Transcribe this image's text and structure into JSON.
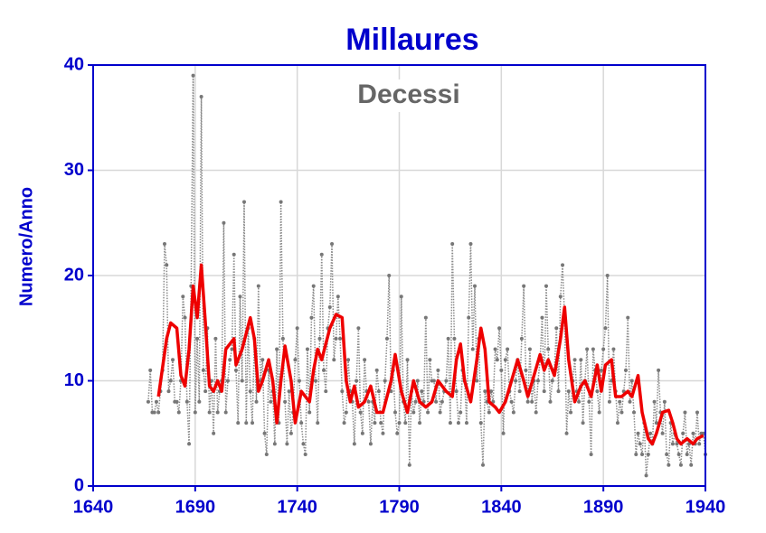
{
  "chart_data": {
    "type": "line",
    "title": "Millaures",
    "annotation": "Decessi",
    "y_label": "Numero/Anno",
    "xlim": [
      1640,
      1940
    ],
    "ylim": [
      0,
      40
    ],
    "xticks": [
      1640,
      1690,
      1740,
      1790,
      1840,
      1890,
      1940
    ],
    "yticks": [
      0,
      10,
      20,
      30,
      40
    ],
    "grid": true,
    "series": [
      {
        "color": "#8a8a8a",
        "style": "dotted",
        "markers": true,
        "x": [
          1667,
          1668,
          1669,
          1670,
          1671,
          1672,
          1673,
          1674,
          1675,
          1676,
          1677,
          1678,
          1679,
          1680,
          1681,
          1682,
          1683,
          1684,
          1685,
          1686,
          1687,
          1688,
          1689,
          1690,
          1691,
          1692,
          1693,
          1694,
          1695,
          1696,
          1697,
          1698,
          1699,
          1700,
          1701,
          1702,
          1703,
          1704,
          1705,
          1706,
          1707,
          1708,
          1709,
          1710,
          1711,
          1712,
          1713,
          1714,
          1715,
          1716,
          1717,
          1718,
          1719,
          1720,
          1721,
          1722,
          1723,
          1724,
          1725,
          1726,
          1727,
          1728,
          1729,
          1730,
          1731,
          1732,
          1733,
          1734,
          1735,
          1736,
          1737,
          1738,
          1739,
          1740,
          1741,
          1742,
          1743,
          1744,
          1745,
          1746,
          1747,
          1748,
          1749,
          1750,
          1751,
          1752,
          1753,
          1754,
          1755,
          1756,
          1757,
          1758,
          1759,
          1760,
          1761,
          1762,
          1763,
          1764,
          1765,
          1766,
          1767,
          1768,
          1769,
          1770,
          1771,
          1772,
          1773,
          1774,
          1775,
          1776,
          1777,
          1778,
          1779,
          1780,
          1781,
          1782,
          1783,
          1784,
          1785,
          1786,
          1787,
          1788,
          1789,
          1790,
          1791,
          1792,
          1793,
          1794,
          1795,
          1796,
          1797,
          1798,
          1799,
          1800,
          1801,
          1802,
          1803,
          1804,
          1805,
          1806,
          1807,
          1808,
          1809,
          1810,
          1811,
          1812,
          1813,
          1814,
          1815,
          1816,
          1817,
          1818,
          1819,
          1820,
          1821,
          1822,
          1823,
          1824,
          1825,
          1826,
          1827,
          1828,
          1829,
          1830,
          1831,
          1832,
          1833,
          1834,
          1835,
          1836,
          1837,
          1838,
          1839,
          1840,
          1841,
          1842,
          1843,
          1844,
          1845,
          1846,
          1847,
          1848,
          1849,
          1850,
          1851,
          1852,
          1853,
          1854,
          1855,
          1856,
          1857,
          1858,
          1859,
          1860,
          1861,
          1862,
          1863,
          1864,
          1865,
          1866,
          1867,
          1868,
          1869,
          1870,
          1871,
          1872,
          1873,
          1874,
          1875,
          1876,
          1877,
          1878,
          1879,
          1880,
          1881,
          1882,
          1883,
          1884,
          1885,
          1886,
          1887,
          1888,
          1889,
          1890,
          1891,
          1892,
          1893,
          1894,
          1895,
          1896,
          1897,
          1898,
          1899,
          1900,
          1901,
          1902,
          1903,
          1904,
          1905,
          1906,
          1907,
          1908,
          1909,
          1910,
          1911,
          1912,
          1913,
          1914,
          1915,
          1916,
          1917,
          1918,
          1919,
          1920,
          1921,
          1922,
          1923,
          1924,
          1925,
          1926,
          1927,
          1928,
          1929,
          1930,
          1931,
          1932,
          1933,
          1934,
          1935,
          1936,
          1937,
          1938,
          1939,
          1940
        ],
        "values": [
          8,
          11,
          7,
          7,
          8,
          7,
          9,
          11,
          23,
          21,
          9,
          10,
          12,
          8,
          8,
          7,
          10,
          18,
          16,
          8,
          4,
          19,
          39,
          7,
          14,
          8,
          37,
          11,
          9,
          15,
          7,
          10,
          5,
          14,
          7,
          9,
          10,
          25,
          7,
          10,
          12,
          13,
          22,
          11,
          6,
          18,
          10,
          27,
          6,
          15,
          9,
          6,
          14,
          8,
          19,
          10,
          12,
          5,
          3,
          11,
          8,
          9,
          4,
          13,
          6,
          27,
          14,
          8,
          4,
          9,
          5,
          7,
          12,
          15,
          10,
          6,
          4,
          3,
          13,
          7,
          16,
          19,
          10,
          6,
          14,
          22,
          11,
          9,
          15,
          17,
          23,
          12,
          14,
          18,
          14,
          9,
          6,
          7,
          12,
          9,
          8,
          4,
          10,
          15,
          7,
          5,
          12,
          9,
          8,
          4,
          8,
          6,
          11,
          9,
          6,
          5,
          10,
          14,
          20,
          9,
          11,
          7,
          5,
          6,
          18,
          8,
          6,
          12,
          2,
          9,
          7,
          8,
          10,
          6,
          9,
          8,
          16,
          7,
          12,
          10,
          10,
          8,
          11,
          7,
          8,
          9,
          10,
          14,
          6,
          23,
          14,
          9,
          6,
          7,
          11,
          10,
          6,
          16,
          23,
          13,
          19,
          10,
          14,
          6,
          2,
          9,
          8,
          7,
          9,
          8,
          13,
          12,
          15,
          11,
          5,
          12,
          13,
          9,
          8,
          7,
          10,
          12,
          9,
          14,
          19,
          11,
          8,
          13,
          8,
          10,
          7,
          10,
          12,
          16,
          9,
          19,
          13,
          8,
          10,
          11,
          15,
          9,
          18,
          21,
          16,
          5,
          9,
          7,
          10,
          12,
          9,
          8,
          12,
          6,
          10,
          13,
          8,
          3,
          13,
          11,
          9,
          7,
          11,
          13,
          15,
          20,
          8,
          10,
          13,
          9,
          6,
          8,
          7,
          9,
          11,
          16,
          8,
          10,
          7,
          3,
          5,
          4,
          3,
          6,
          1,
          3,
          5,
          4,
          8,
          6,
          11,
          7,
          5,
          8,
          3,
          2,
          6,
          4,
          5,
          4,
          3,
          2,
          5,
          7,
          3,
          4,
          2,
          5,
          4,
          7,
          4,
          5,
          5,
          3
        ]
      },
      {
        "color": "#ee0000",
        "style": "solid",
        "markers": false,
        "x": [
          1672,
          1676,
          1678,
          1681,
          1683,
          1685,
          1687,
          1689,
          1691,
          1693,
          1695,
          1697,
          1699,
          1701,
          1703,
          1705,
          1709,
          1710,
          1713,
          1717,
          1719,
          1721,
          1723,
          1726,
          1728,
          1730,
          1732,
          1734,
          1737,
          1739,
          1742,
          1746,
          1748,
          1750,
          1752,
          1756,
          1759,
          1762,
          1764,
          1766,
          1768,
          1770,
          1773,
          1776,
          1779,
          1782,
          1786,
          1788,
          1791,
          1794,
          1797,
          1800,
          1803,
          1806,
          1809,
          1813,
          1816,
          1818,
          1820,
          1822,
          1825,
          1828,
          1830,
          1832,
          1834,
          1837,
          1839,
          1842,
          1845,
          1848,
          1851,
          1853,
          1856,
          1859,
          1861,
          1863,
          1866,
          1869,
          1871,
          1873,
          1876,
          1879,
          1881,
          1884,
          1887,
          1889,
          1891,
          1894,
          1896,
          1899,
          1902,
          1904,
          1907,
          1909,
          1912,
          1914,
          1916,
          1919,
          1922,
          1924,
          1926,
          1928,
          1931,
          1934,
          1936,
          1939
        ],
        "values": [
          8.5,
          14,
          15.5,
          15,
          10.5,
          9.5,
          13,
          19,
          16,
          21,
          15.5,
          9.5,
          9,
          10,
          9,
          13,
          14,
          11.5,
          13,
          16,
          14,
          9,
          10,
          12,
          10,
          6,
          10,
          13.3,
          10,
          6,
          9,
          8,
          11,
          13,
          12,
          15,
          16.3,
          16,
          10,
          8,
          9.5,
          7.5,
          8,
          9.5,
          7,
          7,
          10,
          12.5,
          9,
          7,
          10,
          8,
          7.5,
          8,
          10,
          9,
          8.5,
          12,
          13.5,
          10,
          8,
          12,
          15,
          13,
          8,
          7.5,
          7,
          8,
          10,
          12,
          10,
          8.5,
          10.5,
          12.5,
          11,
          12,
          10.5,
          14,
          17,
          12,
          8,
          9.5,
          10,
          8.5,
          11.5,
          9,
          11.5,
          12,
          8.5,
          8.5,
          9,
          8.5,
          10.5,
          7,
          4.5,
          4,
          5,
          7,
          7.2,
          6,
          4.5,
          4,
          4.5,
          4,
          4.5,
          4.8
        ]
      }
    ]
  }
}
